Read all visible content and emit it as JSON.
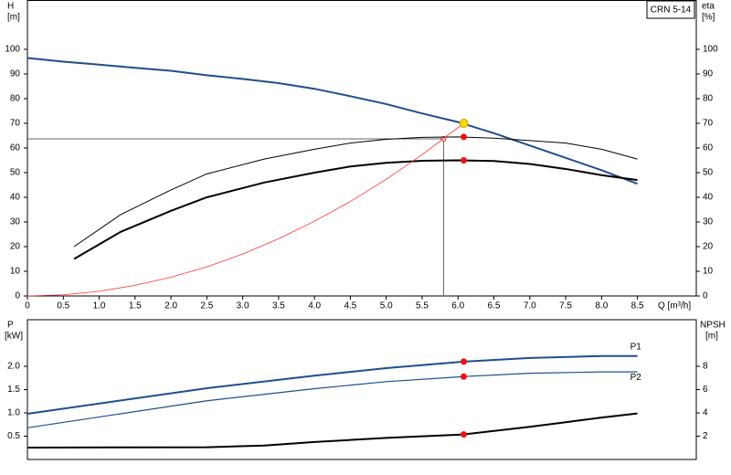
{
  "chart_data": [
    {
      "type": "line",
      "y_label": "H",
      "y_unit": "[m]",
      "y2_label": "eta",
      "y2_unit": "[%]",
      "x_label": "Q [m³/h]",
      "annotation": "CRN 5-14",
      "xlim": [
        0,
        9.32
      ],
      "ylim": [
        0,
        120
      ],
      "y2lim": [
        0,
        120
      ],
      "xticks": [
        0,
        0.5,
        {
          "value": 1,
          "label": "1.0"
        },
        1.5,
        {
          "value": 2,
          "label": "2.0"
        },
        2.5,
        {
          "value": 3,
          "label": "3.0"
        },
        3.5,
        {
          "value": 4,
          "label": "4.0"
        },
        4.5,
        {
          "value": 5,
          "label": "5.0"
        },
        5.5,
        {
          "value": 6,
          "label": "6.0"
        },
        6.5,
        {
          "value": 7,
          "label": "7.0"
        },
        7.5,
        {
          "value": 8,
          "label": "8.0"
        },
        8.5
      ],
      "yticks": [
        0,
        10,
        20,
        30,
        40,
        50,
        60,
        70,
        80,
        90,
        100
      ],
      "y2ticks": [
        0,
        10,
        20,
        30,
        40,
        50,
        60,
        70,
        80,
        90,
        100
      ],
      "series": [
        {
          "color": "#1f4e8c",
          "x": [
            0,
            0.5,
            1,
            1.5,
            2,
            2.5,
            3,
            3.5,
            4,
            4.5,
            5,
            5.5,
            6,
            6.5,
            7,
            7.5,
            8,
            8.5
          ],
          "values": [
            96.5,
            95,
            93.8,
            92.5,
            91.3,
            89.5,
            88,
            86.3,
            84,
            81,
            77.8,
            74,
            70.5,
            66,
            61,
            56,
            51,
            45.5
          ]
        },
        {
          "color": "#000000",
          "axis": "y2",
          "x": [
            0.65,
            1.3,
            2,
            2.5,
            3.3,
            4,
            4.5,
            5,
            5.5,
            6,
            6.5,
            7,
            7.5,
            8,
            8.5
          ],
          "values": [
            15,
            26,
            34.5,
            40,
            46,
            50,
            52.5,
            54,
            54.8,
            55,
            54.7,
            53.5,
            51.5,
            49,
            47
          ]
        },
        {
          "color": "#000000",
          "axis": "y2",
          "x": [
            0.65,
            1.3,
            2,
            2.5,
            3.3,
            4,
            4.5,
            5,
            5.5,
            6,
            6.5,
            7,
            7.5,
            8,
            8.5
          ],
          "values": [
            20,
            33,
            43,
            49.5,
            55.5,
            59.5,
            62,
            63.5,
            64.3,
            64.5,
            64,
            63,
            62,
            59.5,
            55.5
          ]
        },
        {
          "color": "#ff3333",
          "x": [
            0,
            0.5,
            1,
            1.5,
            2,
            2.5,
            3,
            3.5,
            4,
            4.5,
            5,
            5.5,
            6.08
          ],
          "values": [
            0,
            0.47,
            1.9,
            4.3,
            7.6,
            11.8,
            17,
            23.2,
            30.3,
            38.3,
            47.3,
            57.3,
            70
          ]
        }
      ],
      "crosshair": {
        "x": 5.8,
        "y": 63.7
      },
      "markers": [
        {
          "x": 6.08,
          "y": 70,
          "color": "#ffd700"
        },
        {
          "x": 6.08,
          "y": 64.5,
          "color": "#ee1111",
          "axis": "y2"
        },
        {
          "x": 6.08,
          "y": 55,
          "color": "#ee1111",
          "axis": "y2"
        }
      ]
    },
    {
      "type": "line",
      "y_label": "P",
      "y_unit": "[kW]",
      "y2_label": "NPSH",
      "y2_unit": "[m]",
      "xlim": [
        0,
        9.32
      ],
      "ylim": [
        0,
        3
      ],
      "y2lim": [
        0,
        12
      ],
      "yticks": [
        0.5,
        {
          "value": 1,
          "label": "1.0"
        },
        1.5,
        {
          "value": 2,
          "label": "2.0"
        }
      ],
      "y2ticks": [
        2,
        4,
        6,
        8
      ],
      "series": [
        {
          "name": "P1",
          "color": "#1f4e8c",
          "x": [
            0,
            2.5,
            4,
            5,
            6.08,
            7,
            8,
            8.5
          ],
          "values": [
            0.98,
            1.53,
            1.8,
            1.96,
            2.1,
            2.18,
            2.22,
            2.22
          ]
        },
        {
          "name": "P2",
          "color": "#1f4e8c",
          "x": [
            0,
            2.5,
            4,
            5,
            6.08,
            7,
            8,
            8.5
          ],
          "values": [
            0.68,
            1.26,
            1.52,
            1.67,
            1.78,
            1.85,
            1.88,
            1.88
          ]
        },
        {
          "color": "#000000",
          "axis": "y2",
          "x": [
            0,
            2.5,
            3.3,
            4,
            5,
            6.08,
            7,
            7.5,
            8,
            8.5
          ],
          "values": [
            1.02,
            1.05,
            1.2,
            1.5,
            1.85,
            2.15,
            2.8,
            3.2,
            3.6,
            3.95
          ]
        }
      ],
      "markers": [
        {
          "x": 6.08,
          "y": 2.1,
          "color": "#ee1111"
        },
        {
          "x": 6.08,
          "y": 1.78,
          "color": "#ee1111"
        },
        {
          "x": 6.08,
          "y": 2.15,
          "color": "#ee1111",
          "axis": "y2"
        }
      ]
    }
  ]
}
